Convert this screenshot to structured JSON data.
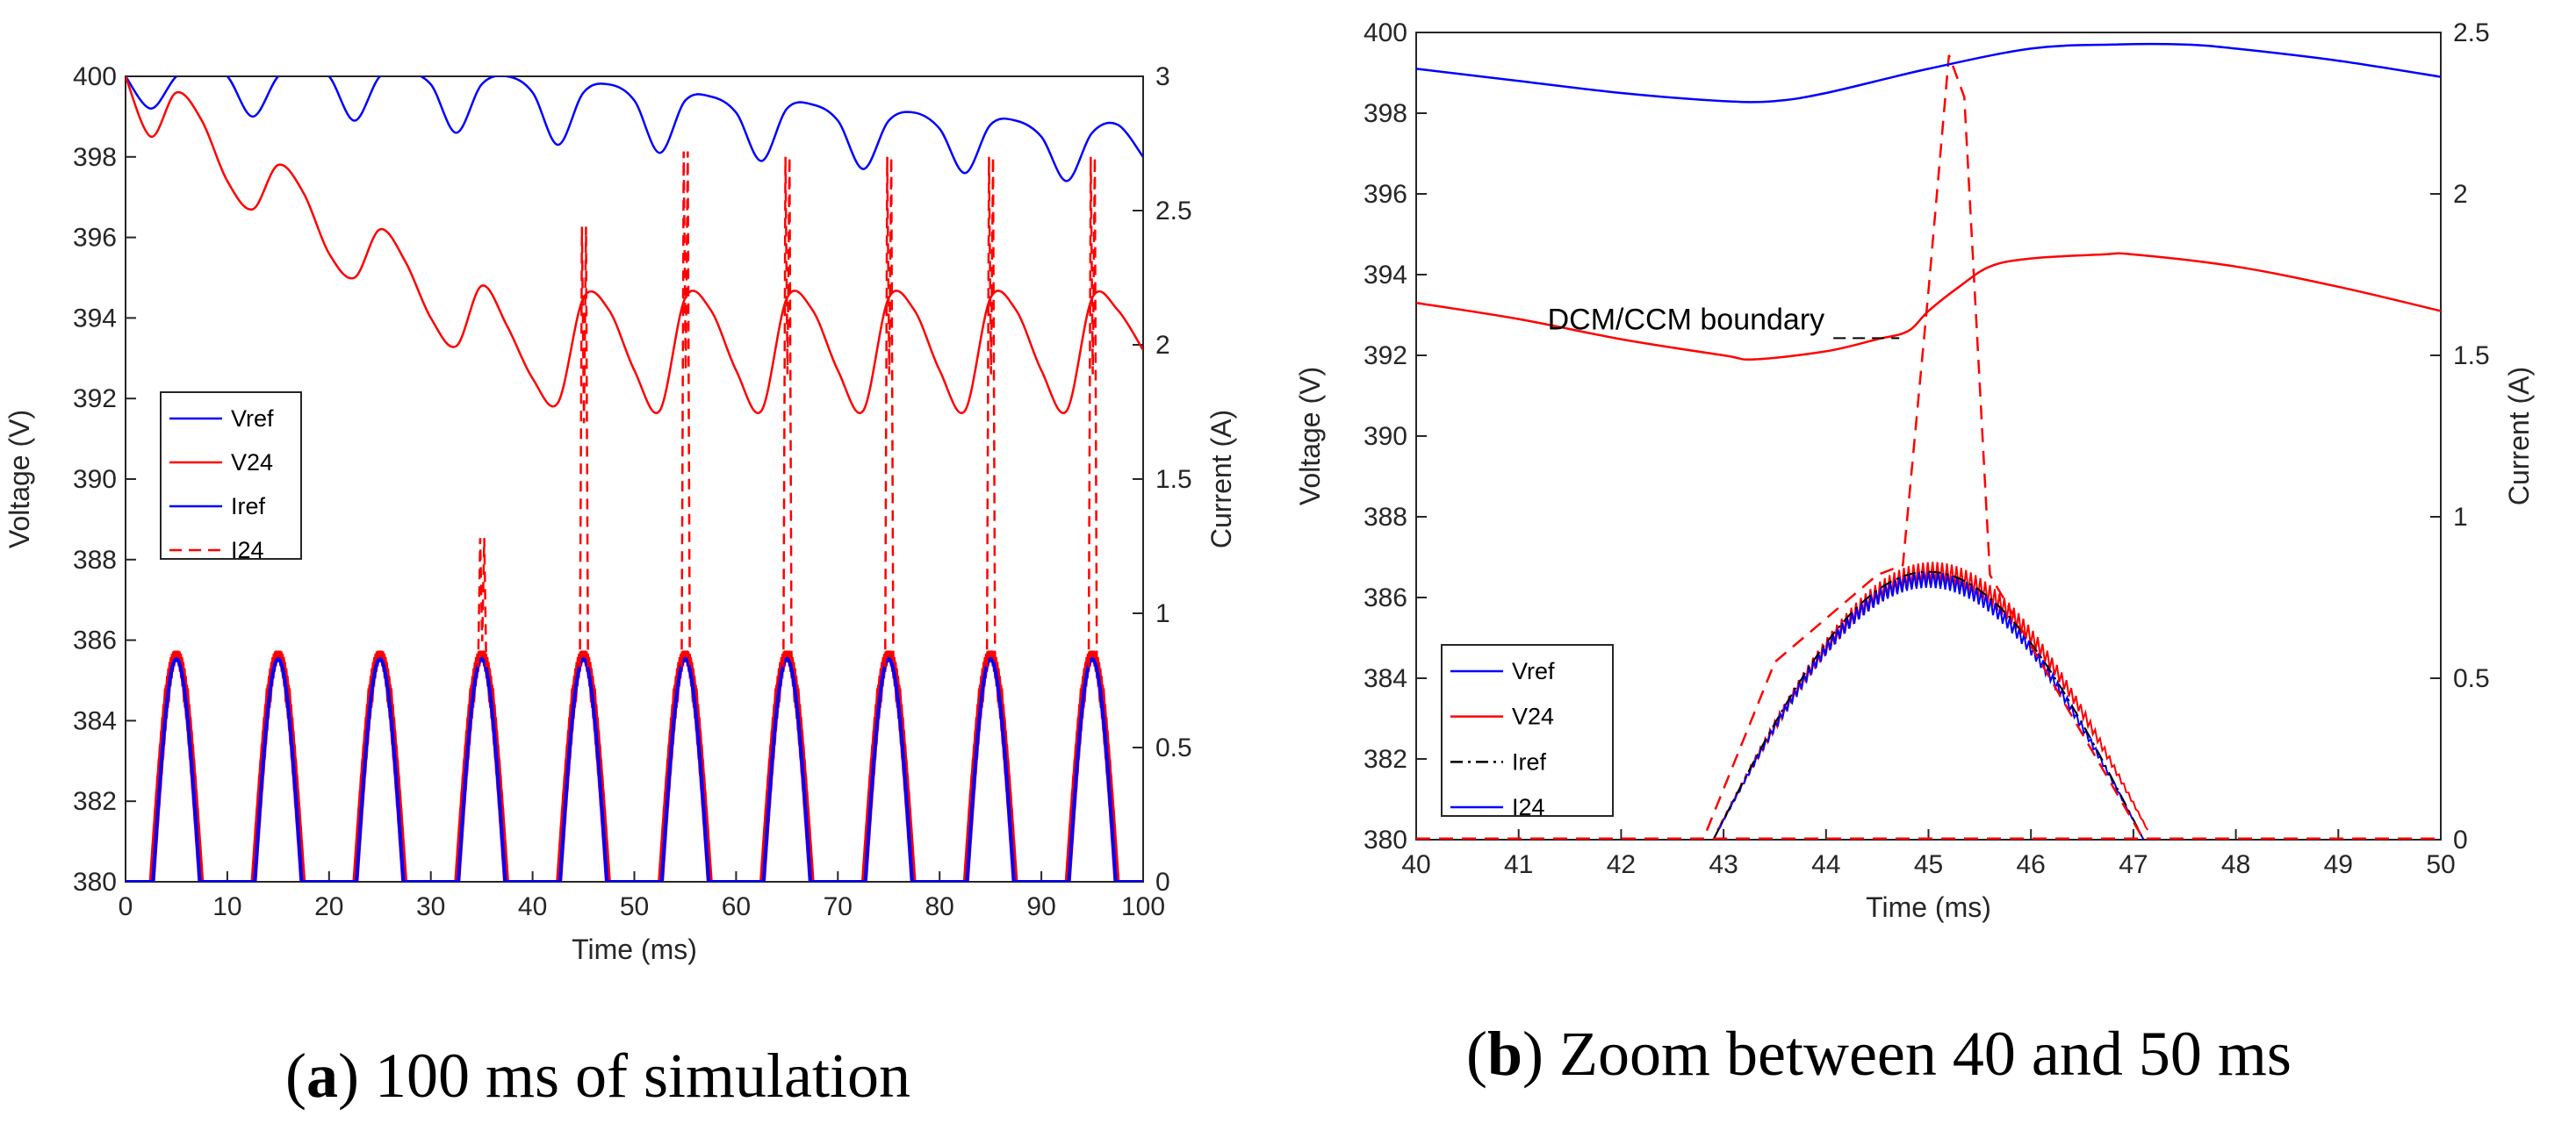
{
  "chart_data": [
    {
      "type": "line",
      "panel_tag": "a",
      "caption_prefix": "(",
      "caption_suffix": ")",
      "caption": "100 ms of simulation",
      "xlabel": "Time (ms)",
      "ylabel": "Voltage (V)",
      "ylabel_right": "Current (A)",
      "xlim": [
        0,
        100
      ],
      "ylim": [
        380,
        400
      ],
      "ylim_right": [
        0,
        3
      ],
      "x_ticks": [
        0,
        10,
        20,
        30,
        40,
        50,
        60,
        70,
        80,
        90,
        100
      ],
      "y_ticks": [
        380,
        382,
        384,
        386,
        388,
        390,
        392,
        394,
        396,
        398,
        400
      ],
      "y_ticks_right": [
        0,
        0.5,
        1,
        1.5,
        2,
        2.5,
        3
      ],
      "legend": [
        "Vref",
        "V24",
        "Iref",
        "I24"
      ],
      "legend_placement": "left-middle",
      "series": [
        {
          "name": "Vref",
          "axis": "left",
          "color": "#0000ff",
          "style": "solid",
          "x": [
            0,
            2.5,
            5,
            7.5,
            10,
            12.5,
            15,
            17.5,
            20,
            22.5,
            25,
            27.5,
            30,
            32.5,
            35,
            37.5,
            40,
            42.5,
            45,
            47.5,
            50,
            52.5,
            55,
            57.5,
            60,
            62.5,
            65,
            67.5,
            70,
            72.5,
            75,
            77.5,
            80,
            82.5,
            85,
            87.5,
            90,
            92.5,
            95,
            97.5,
            100
          ],
          "y": [
            400,
            399.2,
            400,
            400.3,
            400,
            399,
            400,
            400.3,
            400,
            398.9,
            400,
            400.1,
            399.8,
            398.6,
            399.8,
            400,
            399.6,
            398.3,
            399.6,
            399.8,
            399.4,
            398.1,
            399.4,
            399.5,
            399.1,
            397.9,
            399.2,
            399.3,
            398.9,
            397.7,
            398.9,
            399.1,
            398.7,
            397.6,
            398.8,
            398.9,
            398.5,
            397.4,
            398.6,
            398.8,
            398
          ]
        },
        {
          "name": "V24",
          "axis": "left",
          "color": "#ff0000",
          "style": "solid",
          "x": [
            0,
            2.5,
            5,
            7.5,
            10,
            12.5,
            15,
            17.5,
            20,
            22.5,
            25,
            27.5,
            30,
            32.5,
            35,
            37.5,
            40,
            42.5,
            45,
            47.5,
            50,
            52.5,
            55,
            57.5,
            60,
            62.5,
            65,
            67.5,
            70,
            72.5,
            75,
            77.5,
            80,
            82.5,
            85,
            87.5,
            90,
            92.5,
            95,
            97.5,
            100
          ],
          "y": [
            400,
            398.5,
            399.6,
            398.9,
            397.4,
            396.7,
            397.8,
            397.1,
            395.6,
            395,
            396.2,
            395.4,
            394,
            393.3,
            394.8,
            393.8,
            392.5,
            391.9,
            394.5,
            394.2,
            392.7,
            391.7,
            394.5,
            394.2,
            392.7,
            391.7,
            394.5,
            394.2,
            392.7,
            391.7,
            394.5,
            394.2,
            392.7,
            391.7,
            394.5,
            394.2,
            392.7,
            391.7,
            394.5,
            394.2,
            393.2
          ]
        },
        {
          "name": "Iref",
          "axis": "right",
          "color": "#0000ff",
          "style": "solid",
          "description": "rectified sine pulses every 10 ms",
          "peak": 0.83
        },
        {
          "name": "I24",
          "axis": "right",
          "color": "#ff0000",
          "style": "dashed",
          "description": "pulses with spikes",
          "spike_x": [
            35,
            45,
            55,
            65,
            75,
            85,
            95
          ],
          "spike_peaks": [
            1.28,
            2.44,
            2.72,
            2.7,
            2.7,
            2.7,
            2.7
          ]
        }
      ]
    },
    {
      "type": "line",
      "panel_tag": "b",
      "caption_prefix": "(",
      "caption_suffix": ")",
      "caption": "Zoom between 40 and 50 ms",
      "xlabel": "Time (ms)",
      "ylabel": "Voltage (V)",
      "ylabel_right": "Current (A)",
      "xlim": [
        40,
        50
      ],
      "ylim": [
        380,
        400
      ],
      "ylim_right": [
        0,
        2.5
      ],
      "x_ticks": [
        40,
        41,
        42,
        43,
        44,
        45,
        46,
        47,
        48,
        49,
        50
      ],
      "y_ticks": [
        380,
        382,
        384,
        386,
        388,
        390,
        392,
        394,
        396,
        398,
        400
      ],
      "y_ticks_right": [
        0,
        0.5,
        1,
        1.5,
        2,
        2.5
      ],
      "legend": [
        "Vref",
        "V24",
        "Iref",
        "I24"
      ],
      "legend_placement": "bottom-left",
      "annotation": "DCM/CCM boundary",
      "annotation_x": 44.8,
      "annotation_y": 392.6,
      "series": [
        {
          "name": "Vref",
          "axis": "left",
          "color": "#0000ff",
          "style": "solid",
          "x": [
            40,
            41,
            42,
            43,
            43.5,
            44,
            45,
            46,
            46.8,
            47.5,
            48,
            49,
            50
          ],
          "y": [
            399.1,
            398.8,
            398.5,
            398.3,
            398.3,
            398.5,
            399.1,
            399.6,
            399.7,
            399.7,
            399.6,
            399.3,
            398.9
          ]
        },
        {
          "name": "V24",
          "axis": "left",
          "color": "#ff0000",
          "style": "solid",
          "x": [
            40,
            41,
            42,
            43,
            43.3,
            44,
            44.5,
            44.8,
            45,
            45.3,
            45.6,
            46,
            46.7,
            47,
            48,
            49,
            50
          ],
          "y": [
            393.3,
            392.9,
            392.4,
            392,
            391.9,
            392.1,
            392.4,
            392.6,
            393.1,
            393.7,
            394.2,
            394.4,
            394.5,
            394.5,
            394.2,
            393.7,
            393.1
          ]
        },
        {
          "name": "Iref",
          "axis": "right",
          "color": "#000000",
          "style": "dash-dot",
          "description": "rectified sine from 42.9 to 47.1 ms",
          "peak": 0.83
        },
        {
          "name": "I24",
          "axis": "right",
          "color": "#0000ff",
          "style": "solid",
          "description": "ripple current following the reference"
        },
        {
          "name": "I24-dashed",
          "axis": "right",
          "color": "#ff0000",
          "style": "dashed",
          "x": [
            40,
            42.8,
            43.5,
            44.5,
            44.75,
            45,
            45.2,
            45.35,
            45.6,
            47.1,
            50
          ],
          "y": [
            0,
            0,
            0.55,
            0.82,
            0.85,
            1.7,
            2.43,
            2.3,
            0.82,
            0,
            0
          ]
        }
      ]
    }
  ]
}
